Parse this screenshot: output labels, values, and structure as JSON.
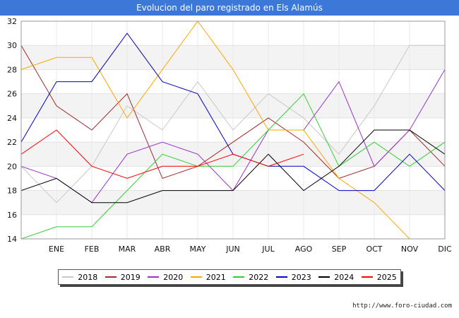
{
  "title": "Evolucion del paro registrado en Els Alamús",
  "footer": "http://www.foro-ciudad.com",
  "chart_data": {
    "type": "line",
    "title": "Evolucion del paro registrado en Els Alamús",
    "categories": [
      "",
      "ENE",
      "FEB",
      "MAR",
      "ABR",
      "MAY",
      "JUN",
      "JUL",
      "AGO",
      "SEP",
      "OCT",
      "NOV",
      "DIC"
    ],
    "ylim": [
      14,
      32
    ],
    "yticks": [
      14,
      16,
      18,
      20,
      22,
      24,
      26,
      28,
      30,
      32
    ],
    "grid": "horizontal bands",
    "legend_position": "bottom",
    "series": [
      {
        "name": "2018",
        "color": "#c8c8c8",
        "values": [
          20,
          17,
          20,
          25,
          23,
          27,
          23,
          26,
          24,
          21,
          25,
          30,
          30
        ]
      },
      {
        "name": "2019",
        "color": "#a52a2a",
        "values": [
          30,
          25,
          23,
          26,
          19,
          20,
          22,
          24,
          22,
          19,
          20,
          23,
          20
        ]
      },
      {
        "name": "2020",
        "color": "#9932cc",
        "values": [
          20,
          19,
          17,
          21,
          22,
          21,
          18,
          23,
          23,
          27,
          20,
          23,
          28
        ]
      },
      {
        "name": "2021",
        "color": "#ffa500",
        "values": [
          28,
          29,
          29,
          24,
          28,
          32,
          28,
          23,
          23,
          19,
          17,
          14,
          null
        ]
      },
      {
        "name": "2022",
        "color": "#32cd32",
        "values": [
          14,
          15,
          15,
          18,
          21,
          20,
          20,
          23,
          26,
          20,
          22,
          20,
          22
        ]
      },
      {
        "name": "2023",
        "color": "#0000cd",
        "values": [
          22,
          27,
          27,
          31,
          27,
          26,
          21,
          20,
          20,
          18,
          18,
          21,
          18
        ]
      },
      {
        "name": "2024",
        "color": "#000000",
        "values": [
          18,
          19,
          17,
          17,
          18,
          18,
          18,
          21,
          18,
          20,
          23,
          23,
          21
        ]
      },
      {
        "name": "2025",
        "color": "#ff0000",
        "values": [
          21,
          23,
          20,
          19,
          20,
          20,
          21,
          20,
          21,
          null,
          null,
          null,
          null
        ]
      }
    ]
  }
}
